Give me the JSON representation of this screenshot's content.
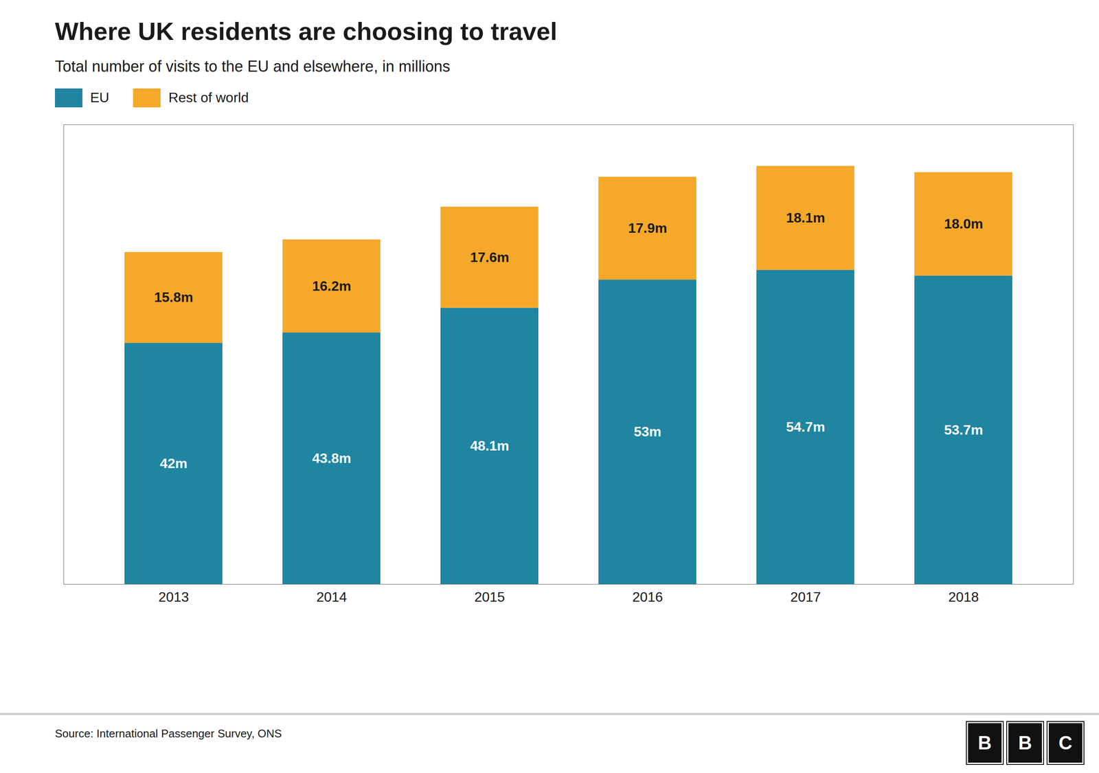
{
  "chart_data": {
    "type": "bar",
    "stacked": true,
    "title": "Where UK residents are choosing to travel",
    "subtitle": "Total number of visits to the EU and elsewhere, in millions",
    "categories": [
      "2013",
      "2014",
      "2015",
      "2016",
      "2017",
      "2018"
    ],
    "series": [
      {
        "name": "EU",
        "color": "#2085a0",
        "values": [
          42,
          43.8,
          48.1,
          53,
          54.7,
          53.7
        ],
        "value_labels": [
          "42m",
          "43.8m",
          "48.1m",
          "53m",
          "54.7m",
          "53.7m"
        ]
      },
      {
        "name": "Rest of world",
        "color": "#f5a82a",
        "values": [
          15.8,
          16.2,
          17.6,
          17.9,
          18.1,
          18.0
        ],
        "value_labels": [
          "15.8m",
          "16.2m",
          "17.6m",
          "17.9m",
          "18.1m",
          "18.0m"
        ]
      }
    ],
    "ylim": [
      0,
      80
    ],
    "tick_labels": "x",
    "grid": false,
    "legend": "top left",
    "data_labels": true,
    "annotations": [
      "Source: International Passenger Survey, ONS",
      "BBC"
    ]
  }
}
